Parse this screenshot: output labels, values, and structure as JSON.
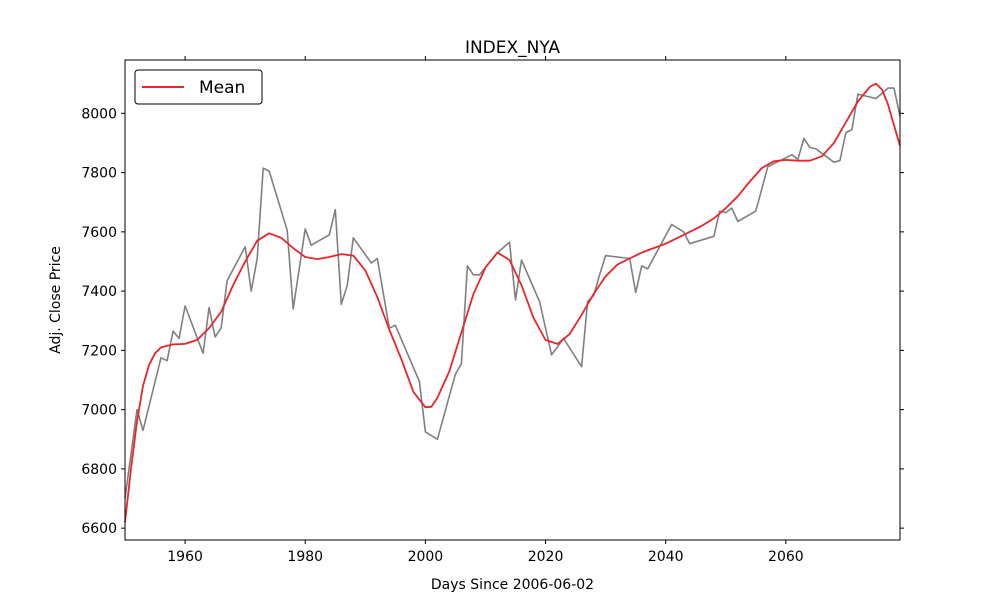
{
  "chart_data": {
    "type": "line",
    "title": "INDEX_NYA",
    "xlabel": "Days Since 2006-06-02",
    "ylabel": "Adj. Close Price",
    "xlim": [
      1950,
      2079
    ],
    "ylim": [
      6560,
      8180
    ],
    "xticks": [
      1960,
      1980,
      2000,
      2020,
      2040,
      2060
    ],
    "yticks": [
      6600,
      6800,
      7000,
      7200,
      7400,
      7600,
      7800,
      8000
    ],
    "grid": false,
    "legend": {
      "position": "top-left",
      "entries": [
        "Mean"
      ]
    },
    "series": [
      {
        "name": "",
        "color": "#808080",
        "x": [
          1950,
          1952,
          1953,
          1956,
          1957,
          1958,
          1959,
          1960,
          1963,
          1964,
          1965,
          1966,
          1967,
          1970,
          1971,
          1972,
          1973,
          1974,
          1977,
          1978,
          1980,
          1981,
          1984,
          1985,
          1986,
          1987,
          1988,
          1991,
          1992,
          1994,
          1995,
          1999,
          2000,
          2002,
          2005,
          2006,
          2007,
          2008,
          2009,
          2012,
          2014,
          2015,
          2016,
          2019,
          2021,
          2023,
          2026,
          2027,
          2028,
          2029,
          2030,
          2034,
          2035,
          2036,
          2037,
          2041,
          2043,
          2044,
          2048,
          2049,
          2050,
          2051,
          2052,
          2055,
          2057,
          2061,
          2062,
          2063,
          2064,
          2065,
          2066,
          2068,
          2069,
          2070,
          2071,
          2072,
          2075,
          2077,
          2078,
          2079
        ],
        "y": [
          6700,
          7000,
          6930,
          7175,
          7165,
          7265,
          7240,
          7350,
          7190,
          7345,
          7245,
          7275,
          7435,
          7550,
          7400,
          7510,
          7815,
          7805,
          7605,
          7340,
          7610,
          7555,
          7590,
          7675,
          7355,
          7420,
          7580,
          7495,
          7510,
          7275,
          7285,
          7095,
          6925,
          6900,
          7120,
          7155,
          7485,
          7455,
          7455,
          7530,
          7565,
          7370,
          7505,
          7365,
          7185,
          7240,
          7145,
          7365,
          7385,
          7455,
          7520,
          7510,
          7395,
          7485,
          7475,
          7625,
          7600,
          7560,
          7585,
          7670,
          7665,
          7680,
          7635,
          7670,
          7820,
          7860,
          7845,
          7915,
          7885,
          7880,
          7865,
          7835,
          7840,
          7935,
          7945,
          8065,
          8050,
          8085,
          8085,
          7990
        ]
      },
      {
        "name": "Mean",
        "color": "#e8262b",
        "x": [
          1950,
          1951,
          1952,
          1953,
          1954,
          1955,
          1956,
          1958,
          1960,
          1962,
          1964,
          1966,
          1968,
          1970,
          1972,
          1974,
          1976,
          1978,
          1980,
          1982,
          1984,
          1986,
          1988,
          1990,
          1992,
          1994,
          1996,
          1998,
          2000,
          2001,
          2002,
          2004,
          2006,
          2008,
          2010,
          2012,
          2014,
          2016,
          2018,
          2020,
          2022,
          2024,
          2026,
          2028,
          2030,
          2032,
          2034,
          2036,
          2038,
          2040,
          2042,
          2044,
          2046,
          2048,
          2050,
          2052,
          2054,
          2056,
          2058,
          2060,
          2062,
          2064,
          2066,
          2068,
          2070,
          2072,
          2074,
          2075,
          2076,
          2077,
          2078,
          2079
        ],
        "y": [
          6620,
          6800,
          6960,
          7080,
          7150,
          7190,
          7210,
          7220,
          7222,
          7235,
          7275,
          7330,
          7420,
          7500,
          7570,
          7595,
          7580,
          7545,
          7515,
          7508,
          7515,
          7525,
          7520,
          7470,
          7380,
          7270,
          7170,
          7060,
          7008,
          7010,
          7040,
          7130,
          7260,
          7390,
          7480,
          7530,
          7505,
          7420,
          7310,
          7235,
          7222,
          7255,
          7320,
          7390,
          7450,
          7490,
          7510,
          7530,
          7545,
          7560,
          7580,
          7600,
          7620,
          7645,
          7680,
          7720,
          7770,
          7815,
          7838,
          7843,
          7840,
          7840,
          7855,
          7900,
          7970,
          8040,
          8090,
          8100,
          8080,
          8030,
          7960,
          7890
        ]
      }
    ]
  }
}
